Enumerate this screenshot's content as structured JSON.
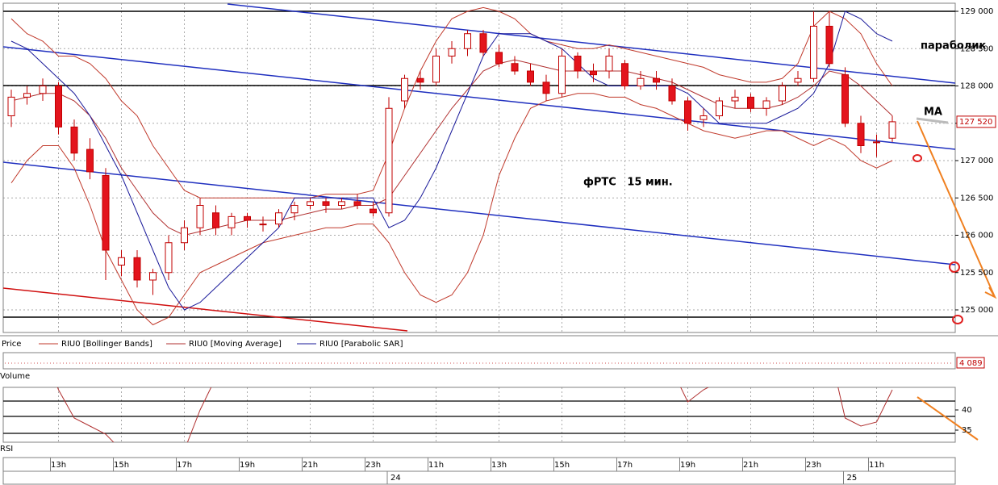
{
  "chart_data": {
    "type": "candlestick",
    "annotation_title": "фРТС   15 мин.",
    "annotation_sar": "параболик",
    "annotation_ma": "MA",
    "ylim": [
      124800,
      129100
    ],
    "yticks": [
      {
        "value": 125000,
        "label": "125 000"
      },
      {
        "value": 125500,
        "label": "125 500"
      },
      {
        "value": 126000,
        "label": "126 000"
      },
      {
        "value": 126500,
        "label": "126 500"
      },
      {
        "value": 127000,
        "label": "127 000"
      },
      {
        "value": 127500,
        "label": "127 500"
      },
      {
        "value": 128000,
        "label": "128 000"
      },
      {
        "value": 128500,
        "label": "128 500"
      },
      {
        "value": 129000,
        "label": "129 000"
      }
    ],
    "last_price": {
      "value": 127520,
      "label": "127 520"
    },
    "grid": true,
    "up_color": "#ffffff",
    "down_color": "#e3141d",
    "outline_color": "#c00000",
    "legend": {
      "price": "Price"
    },
    "candles": [
      [
        127600,
        127950,
        127450,
        127850
      ],
      [
        127850,
        128000,
        127750,
        127900
      ],
      [
        127900,
        128100,
        127800,
        128000
      ],
      [
        128000,
        128050,
        127350,
        127450
      ],
      [
        127450,
        127550,
        127000,
        127100
      ],
      [
        127150,
        127300,
        126750,
        126850
      ],
      [
        126800,
        126900,
        125400,
        125800
      ],
      [
        125600,
        125800,
        125450,
        125700
      ],
      [
        125700,
        125800,
        125300,
        125400
      ],
      [
        125400,
        125550,
        125200,
        125500
      ],
      [
        125500,
        126000,
        125400,
        125900
      ],
      [
        125900,
        126200,
        125800,
        126100
      ],
      [
        126100,
        126500,
        126000,
        126400
      ],
      [
        126300,
        126400,
        126000,
        126100
      ],
      [
        126100,
        126300,
        126000,
        126250
      ],
      [
        126250,
        126300,
        126100,
        126200
      ],
      [
        126150,
        126250,
        126050,
        126150
      ],
      [
        126150,
        126350,
        126100,
        126300
      ],
      [
        126300,
        126450,
        126200,
        126400
      ],
      [
        126400,
        126500,
        126350,
        126450
      ],
      [
        126450,
        126500,
        126300,
        126400
      ],
      [
        126400,
        126500,
        126350,
        126450
      ],
      [
        126450,
        126550,
        126350,
        126400
      ],
      [
        126350,
        126450,
        126250,
        126300
      ],
      [
        126300,
        127850,
        126250,
        127700
      ],
      [
        127800,
        128150,
        127700,
        128100
      ],
      [
        128100,
        128200,
        127950,
        128050
      ],
      [
        128050,
        128500,
        128000,
        128400
      ],
      [
        128400,
        128600,
        128300,
        128500
      ],
      [
        128500,
        128750,
        128400,
        128700
      ],
      [
        128700,
        128750,
        128400,
        128450
      ],
      [
        128450,
        128550,
        128250,
        128300
      ],
      [
        128300,
        128400,
        128150,
        128200
      ],
      [
        128200,
        128300,
        128000,
        128050
      ],
      [
        128050,
        128150,
        127800,
        127900
      ],
      [
        127900,
        128500,
        127850,
        128400
      ],
      [
        128400,
        128450,
        128100,
        128200
      ],
      [
        128200,
        128300,
        128050,
        128150
      ],
      [
        128200,
        128500,
        128100,
        128400
      ],
      [
        128300,
        128350,
        127950,
        128000
      ],
      [
        128000,
        128200,
        127950,
        128100
      ],
      [
        128100,
        128200,
        127950,
        128050
      ],
      [
        128000,
        128100,
        127750,
        127800
      ],
      [
        127800,
        127850,
        127400,
        127500
      ],
      [
        127550,
        127700,
        127450,
        127600
      ],
      [
        127600,
        127850,
        127550,
        127800
      ],
      [
        127800,
        127950,
        127700,
        127850
      ],
      [
        127850,
        127900,
        127650,
        127700
      ],
      [
        127700,
        127850,
        127600,
        127800
      ],
      [
        127800,
        128050,
        127750,
        128000
      ],
      [
        128050,
        128200,
        128000,
        128100
      ],
      [
        128100,
        129000,
        128050,
        128800
      ],
      [
        128800,
        129000,
        128250,
        128300
      ],
      [
        128150,
        128250,
        127450,
        127500
      ],
      [
        127500,
        127600,
        127100,
        127200
      ],
      [
        127250,
        127350,
        127050,
        127250
      ],
      [
        127300,
        127600,
        127250,
        127520
      ]
    ],
    "bollinger": {
      "name": "RIU0 [Bollinger Bands]",
      "color": "#c0392b",
      "upper": [
        128900,
        128700,
        128600,
        128400,
        128400,
        128300,
        128100,
        127800,
        127600,
        127200,
        126900,
        126600,
        126500,
        126500,
        126500,
        126500,
        126500,
        126500,
        126500,
        126500,
        126550,
        126550,
        126550,
        126600,
        127100,
        127700,
        128200,
        128600,
        128900,
        129000,
        129050,
        129000,
        128900,
        128700,
        128600,
        128550,
        128500,
        128500,
        128550,
        128500,
        128450,
        128400,
        128350,
        128300,
        128250,
        128150,
        128100,
        128050,
        128050,
        128100,
        128300,
        128800,
        129000,
        128900,
        128700,
        128300,
        128000
      ],
      "lower": [
        126700,
        127000,
        127200,
        127200,
        126900,
        126400,
        125800,
        125400,
        125000,
        124800,
        124900,
        125200,
        125500,
        125600,
        125700,
        125800,
        125900,
        125950,
        126000,
        126050,
        126100,
        126100,
        126150,
        126150,
        125900,
        125500,
        125200,
        125100,
        125200,
        125500,
        126000,
        126800,
        127300,
        127700,
        127800,
        127850,
        127900,
        127900,
        127850,
        127850,
        127750,
        127700,
        127600,
        127500,
        127400,
        127350,
        127300,
        127350,
        127400,
        127400,
        127300,
        127200,
        127300,
        127200,
        127000,
        126900,
        127000
      ]
    },
    "ma": {
      "name": "RIU0 [Moving Average]",
      "color": "#b03030",
      "values": [
        127800,
        127850,
        127900,
        127900,
        127800,
        127600,
        127300,
        126900,
        126600,
        126300,
        126100,
        126000,
        126050,
        126100,
        126150,
        126200,
        126200,
        126200,
        126250,
        126300,
        126350,
        126350,
        126400,
        126400,
        126500,
        126800,
        127100,
        127400,
        127700,
        127950,
        128200,
        128300,
        128350,
        128300,
        128250,
        128200,
        128200,
        128200,
        128200,
        128200,
        128150,
        128100,
        128050,
        127950,
        127850,
        127750,
        127700,
        127700,
        127700,
        127750,
        127850,
        128000,
        128200,
        128150,
        128000,
        127800,
        127600
      ]
    },
    "sar": {
      "name": "RIU0 [Parabolic SAR]",
      "color": "#1a1a9a",
      "values": [
        128600,
        128500,
        128300,
        128100,
        127900,
        127600,
        127200,
        126800,
        126300,
        125800,
        125300,
        125000,
        125100,
        125300,
        125500,
        125700,
        125900,
        126100,
        126500,
        126500,
        126500,
        126500,
        126500,
        126500,
        126100,
        126200,
        126500,
        126900,
        127400,
        127900,
        128400,
        128700,
        128700,
        128700,
        128600,
        128500,
        128300,
        128100,
        128000,
        128000,
        128000,
        128000,
        128000,
        127900,
        127700,
        127500,
        127500,
        127500,
        127500,
        127600,
        127700,
        127900,
        128300,
        129000,
        128900,
        128700,
        128600
      ]
    },
    "volume_title": "Volume",
    "volume_label": "4 089",
    "rsi_title": "RSI",
    "rsi_ylim": [
      32,
      45.6
    ],
    "rsi_yticks": [
      35,
      40
    ],
    "rsi": {
      "color": "#b03030",
      "values": [
        50,
        50,
        55,
        45,
        38,
        36,
        34,
        30,
        28,
        25,
        25,
        30,
        40,
        48,
        52,
        50,
        48,
        50,
        52,
        55,
        55,
        55,
        55,
        55,
        70,
        75,
        75,
        75,
        72,
        70,
        68,
        60,
        58,
        55,
        55,
        58,
        55,
        55,
        57,
        55,
        52,
        52,
        50,
        42,
        45,
        47,
        48,
        47,
        48,
        50,
        52,
        60,
        55,
        38,
        36,
        37,
        45
      ]
    },
    "time_labels": [
      {
        "index": 3,
        "label": "13h"
      },
      {
        "index": 7,
        "label": "15h"
      },
      {
        "index": 11,
        "label": "17h"
      },
      {
        "index": 15,
        "label": "19h"
      },
      {
        "index": 19,
        "label": "21h"
      },
      {
        "index": 23,
        "label": "23h"
      },
      {
        "index": 27,
        "label": "11h"
      },
      {
        "index": 31,
        "label": "13h"
      },
      {
        "index": 35,
        "label": "15h"
      },
      {
        "index": 39,
        "label": "17h"
      },
      {
        "index": 43,
        "label": "19h"
      },
      {
        "index": 47,
        "label": "21h"
      },
      {
        "index": 51,
        "label": "23h"
      },
      {
        "index": 55,
        "label": "11h"
      }
    ],
    "date_labels": [
      {
        "index": 24,
        "label": "24"
      },
      {
        "index": 53,
        "label": "25"
      }
    ]
  }
}
